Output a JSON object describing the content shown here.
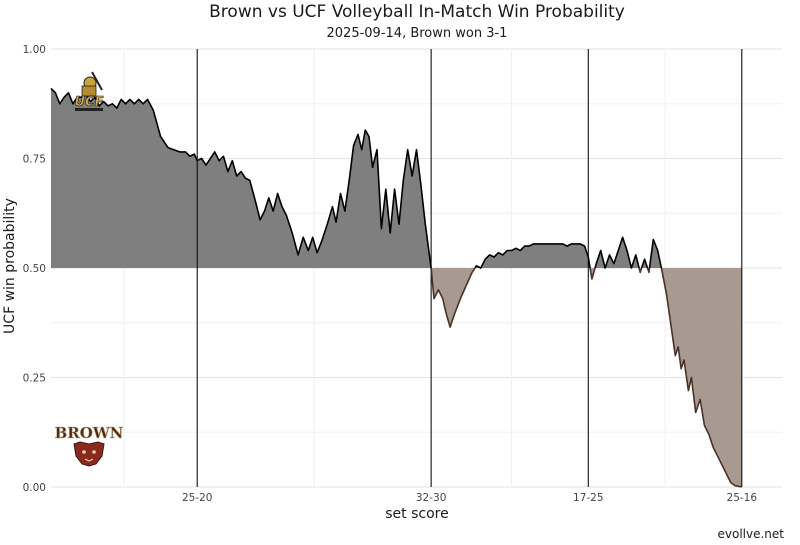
{
  "chart_data": {
    "type": "area",
    "title": "Brown vs UCF Volleyball In-Match Win Probability",
    "subtitle": "2025-09-14, Brown won 3-1",
    "xlabel": "set score",
    "ylabel": "UCF win probability",
    "ylim": [
      0,
      1
    ],
    "y_ticks": [
      "0.00",
      "0.25",
      "0.50",
      "0.75",
      "1.00"
    ],
    "baseline": 0.5,
    "grid": true,
    "set_boundaries": [
      {
        "x": 0.2,
        "label": "25-20"
      },
      {
        "x": 0.52,
        "label": "32-30"
      },
      {
        "x": 0.735,
        "label": "17-25"
      },
      {
        "x": 0.945,
        "label": "25-16"
      }
    ],
    "team_above": "UCF",
    "team_below": "Brown",
    "colors": {
      "above": "#7f7f7f",
      "below": "#a89a90",
      "line_above": "#000000",
      "line_below": "#4a3228"
    },
    "series": [
      {
        "points": [
          [
            0.0,
            0.91
          ],
          [
            0.006,
            0.9
          ],
          [
            0.012,
            0.875
          ],
          [
            0.018,
            0.89
          ],
          [
            0.024,
            0.9
          ],
          [
            0.03,
            0.875
          ],
          [
            0.036,
            0.89
          ],
          [
            0.042,
            0.89
          ],
          [
            0.048,
            0.895
          ],
          [
            0.054,
            0.88
          ],
          [
            0.06,
            0.89
          ],
          [
            0.066,
            0.87
          ],
          [
            0.072,
            0.88
          ],
          [
            0.078,
            0.87
          ],
          [
            0.084,
            0.875
          ],
          [
            0.09,
            0.865
          ],
          [
            0.096,
            0.885
          ],
          [
            0.102,
            0.875
          ],
          [
            0.108,
            0.885
          ],
          [
            0.114,
            0.875
          ],
          [
            0.12,
            0.885
          ],
          [
            0.126,
            0.875
          ],
          [
            0.132,
            0.885
          ],
          [
            0.14,
            0.86
          ],
          [
            0.15,
            0.8
          ],
          [
            0.16,
            0.775
          ],
          [
            0.168,
            0.77
          ],
          [
            0.176,
            0.765
          ],
          [
            0.184,
            0.765
          ],
          [
            0.19,
            0.755
          ],
          [
            0.196,
            0.76
          ],
          [
            0.2,
            0.745
          ],
          [
            0.206,
            0.75
          ],
          [
            0.212,
            0.735
          ],
          [
            0.218,
            0.75
          ],
          [
            0.224,
            0.765
          ],
          [
            0.23,
            0.745
          ],
          [
            0.236,
            0.755
          ],
          [
            0.242,
            0.72
          ],
          [
            0.248,
            0.745
          ],
          [
            0.254,
            0.71
          ],
          [
            0.26,
            0.72
          ],
          [
            0.266,
            0.705
          ],
          [
            0.272,
            0.7
          ],
          [
            0.28,
            0.65
          ],
          [
            0.286,
            0.61
          ],
          [
            0.292,
            0.63
          ],
          [
            0.298,
            0.66
          ],
          [
            0.304,
            0.63
          ],
          [
            0.31,
            0.67
          ],
          [
            0.316,
            0.64
          ],
          [
            0.322,
            0.62
          ],
          [
            0.33,
            0.58
          ],
          [
            0.338,
            0.53
          ],
          [
            0.345,
            0.57
          ],
          [
            0.352,
            0.54
          ],
          [
            0.358,
            0.57
          ],
          [
            0.364,
            0.535
          ],
          [
            0.37,
            0.56
          ],
          [
            0.378,
            0.6
          ],
          [
            0.385,
            0.64
          ],
          [
            0.39,
            0.605
          ],
          [
            0.396,
            0.67
          ],
          [
            0.402,
            0.63
          ],
          [
            0.408,
            0.7
          ],
          [
            0.414,
            0.78
          ],
          [
            0.42,
            0.805
          ],
          [
            0.425,
            0.77
          ],
          [
            0.43,
            0.815
          ],
          [
            0.435,
            0.8
          ],
          [
            0.44,
            0.73
          ],
          [
            0.446,
            0.77
          ],
          [
            0.452,
            0.59
          ],
          [
            0.458,
            0.68
          ],
          [
            0.464,
            0.58
          ],
          [
            0.47,
            0.68
          ],
          [
            0.476,
            0.6
          ],
          [
            0.482,
            0.7
          ],
          [
            0.488,
            0.77
          ],
          [
            0.494,
            0.71
          ],
          [
            0.5,
            0.77
          ],
          [
            0.506,
            0.69
          ],
          [
            0.512,
            0.6
          ],
          [
            0.52,
            0.5
          ],
          [
            0.524,
            0.43
          ],
          [
            0.53,
            0.45
          ],
          [
            0.536,
            0.43
          ],
          [
            0.54,
            0.4
          ],
          [
            0.546,
            0.365
          ],
          [
            0.552,
            0.395
          ],
          [
            0.56,
            0.43
          ],
          [
            0.568,
            0.46
          ],
          [
            0.576,
            0.49
          ],
          [
            0.582,
            0.505
          ],
          [
            0.588,
            0.5
          ],
          [
            0.594,
            0.52
          ],
          [
            0.6,
            0.53
          ],
          [
            0.606,
            0.525
          ],
          [
            0.612,
            0.535
          ],
          [
            0.618,
            0.53
          ],
          [
            0.624,
            0.54
          ],
          [
            0.63,
            0.54
          ],
          [
            0.636,
            0.545
          ],
          [
            0.642,
            0.54
          ],
          [
            0.648,
            0.55
          ],
          [
            0.654,
            0.55
          ],
          [
            0.66,
            0.555
          ],
          [
            0.668,
            0.555
          ],
          [
            0.676,
            0.555
          ],
          [
            0.684,
            0.555
          ],
          [
            0.692,
            0.555
          ],
          [
            0.7,
            0.555
          ],
          [
            0.706,
            0.55
          ],
          [
            0.712,
            0.555
          ],
          [
            0.718,
            0.555
          ],
          [
            0.724,
            0.555
          ],
          [
            0.73,
            0.55
          ],
          [
            0.735,
            0.525
          ],
          [
            0.74,
            0.475
          ],
          [
            0.746,
            0.51
          ],
          [
            0.752,
            0.54
          ],
          [
            0.758,
            0.5
          ],
          [
            0.764,
            0.53
          ],
          [
            0.77,
            0.51
          ],
          [
            0.776,
            0.54
          ],
          [
            0.782,
            0.57
          ],
          [
            0.788,
            0.54
          ],
          [
            0.794,
            0.5
          ],
          [
            0.8,
            0.53
          ],
          [
            0.806,
            0.49
          ],
          [
            0.812,
            0.52
          ],
          [
            0.818,
            0.49
          ],
          [
            0.824,
            0.565
          ],
          [
            0.83,
            0.54
          ],
          [
            0.835,
            0.5
          ],
          [
            0.842,
            0.44
          ],
          [
            0.848,
            0.37
          ],
          [
            0.854,
            0.3
          ],
          [
            0.858,
            0.32
          ],
          [
            0.862,
            0.27
          ],
          [
            0.866,
            0.29
          ],
          [
            0.872,
            0.22
          ],
          [
            0.876,
            0.25
          ],
          [
            0.882,
            0.17
          ],
          [
            0.888,
            0.2
          ],
          [
            0.894,
            0.14
          ],
          [
            0.9,
            0.12
          ],
          [
            0.906,
            0.09
          ],
          [
            0.912,
            0.07
          ],
          [
            0.918,
            0.05
          ],
          [
            0.924,
            0.03
          ],
          [
            0.93,
            0.01
          ],
          [
            0.936,
            0.003
          ],
          [
            0.945,
            0.0
          ]
        ]
      }
    ]
  },
  "logos": {
    "top": "UCF",
    "bottom": "BROWN"
  },
  "credit": "evollve.net"
}
